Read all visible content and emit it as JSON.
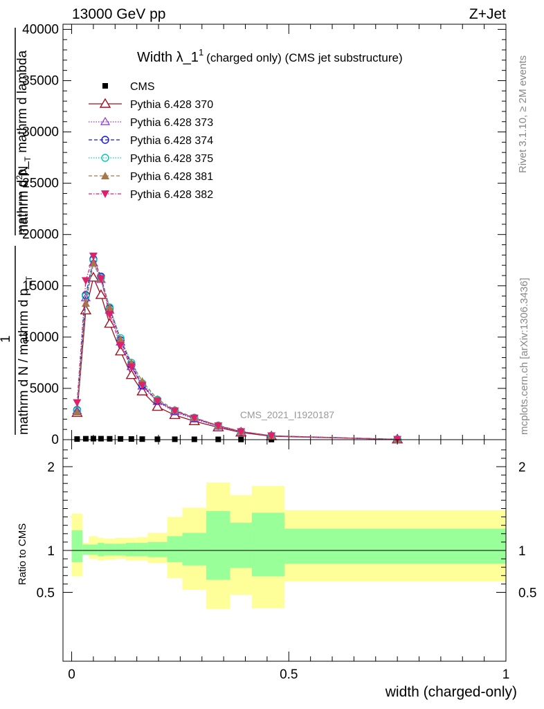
{
  "header": {
    "left": "13000 GeV pp",
    "right": "Z+Jet"
  },
  "side": {
    "rivet": "Rivet 3.1.10, ≥ 2M events",
    "mcplots": "mcplots.cern.ch [arXiv:1306.3436]"
  },
  "title": {
    "main": "Width λ_1",
    "sup": "1",
    "suffix": "(charged only) (CMS jet substructure)"
  },
  "watermark": "CMS_2021_I1920187",
  "ylabel_main": {
    "line1": "mathrm d",
    "line1_sup": "2",
    "line1_tail": "N",
    "line2": "mathrm d p_",
    "line2_sub": "T",
    "line2_tail": " mathrm d lambda",
    "frac1": "1",
    "frac2_part1": "mathrm d N / mathrm d p_",
    "frac2_sub": "T"
  },
  "ylabel_ratio": "Ratio to CMS",
  "xlabel": "width (charged-only)",
  "colors": {
    "cms": "#000000",
    "p370": "#a01020",
    "p373": "#8a2be2",
    "p374": "#1515e0",
    "p375": "#00c8b4",
    "p381": "#a5784a",
    "p382": "#e0206a",
    "band_inner": "#99ff99",
    "band_outer": "#ffff99"
  },
  "chart_data": [
    {
      "type": "line",
      "panel": "main",
      "ylim": [
        0,
        40500
      ],
      "xlim": [
        -0.02,
        1.0
      ],
      "yticks": [
        0,
        5000,
        10000,
        15000,
        20000,
        25000,
        30000,
        35000,
        40000
      ],
      "ytick_labels": [
        "0",
        "5000",
        "10000",
        "15000",
        "20000",
        "25000",
        "30000",
        "35000",
        "40000"
      ],
      "legend": {
        "placement": "top-left"
      },
      "x": [
        0.0125,
        0.0325,
        0.05,
        0.0675,
        0.0875,
        0.1125,
        0.1375,
        0.1625,
        0.1975,
        0.2375,
        0.2825,
        0.3375,
        0.39,
        0.46,
        0.75
      ],
      "series": [
        {
          "name": "CMS",
          "key": "cms",
          "marker": "square",
          "values": [
            60,
            90,
            100,
            95,
            85,
            75,
            65,
            55,
            45,
            40,
            35,
            30,
            20,
            15,
            5
          ]
        },
        {
          "name": "Pythia 6.428 370",
          "key": "p370",
          "marker": "triangle-open",
          "dash": "",
          "values": [
            2600,
            12600,
            15800,
            14100,
            11300,
            8600,
            6300,
            4700,
            3200,
            2400,
            1800,
            1200,
            700,
            330,
            25
          ]
        },
        {
          "name": "Pythia 6.428 373",
          "key": "p373",
          "marker": "triangle-open-small",
          "dash": "1.5,2",
          "values": [
            2800,
            13800,
            17200,
            15600,
            12600,
            9500,
            7100,
            5200,
            3700,
            2700,
            2000,
            1300,
            760,
            360,
            28
          ]
        },
        {
          "name": "Pythia 6.428 374",
          "key": "p374",
          "marker": "circle-open",
          "dash": "5,3",
          "values": [
            2900,
            14100,
            17600,
            15900,
            12800,
            9700,
            7300,
            5300,
            3800,
            2800,
            2100,
            1350,
            780,
            370,
            29
          ]
        },
        {
          "name": "Pythia 6.428 375",
          "key": "p375",
          "marker": "circle-open-cyan",
          "dash": "1.5,2",
          "values": [
            2850,
            14000,
            17500,
            15800,
            12900,
            9900,
            7500,
            5500,
            3900,
            2850,
            2150,
            1380,
            800,
            380,
            30
          ]
        },
        {
          "name": "Pythia 6.428 381",
          "key": "p381",
          "marker": "triangle-filled",
          "dash": "5,3",
          "values": [
            2700,
            13300,
            17200,
            15700,
            12900,
            9800,
            7500,
            5700,
            3950,
            2900,
            2150,
            1390,
            810,
            385,
            31
          ]
        },
        {
          "name": "Pythia 6.428 382",
          "key": "p382",
          "marker": "triangle-down-filled",
          "dash": "5,2,1.5,2",
          "values": [
            3600,
            15500,
            17900,
            15700,
            12200,
            9200,
            7100,
            5300,
            3750,
            2800,
            2100,
            1340,
            780,
            370,
            29
          ]
        }
      ]
    },
    {
      "type": "area",
      "panel": "ratio",
      "ylabel": "Ratio to CMS",
      "xlabel": "width (charged-only)",
      "ylim": [
        0.38,
        2.3
      ],
      "xlim": [
        -0.02,
        1.0
      ],
      "yticks": [
        0.5,
        1,
        2
      ],
      "ytick_labels": [
        "0.5",
        "1",
        "2"
      ],
      "xticks": [
        0,
        0.5,
        1
      ],
      "xtick_labels": [
        "0",
        "0.5",
        "1"
      ],
      "bin_edges": [
        0.0,
        0.025,
        0.04,
        0.06,
        0.075,
        0.1,
        0.125,
        0.15,
        0.175,
        0.22,
        0.255,
        0.31,
        0.365,
        0.415,
        0.49,
        1.0
      ],
      "inner_low": [
        0.86,
        0.95,
        0.95,
        0.93,
        0.94,
        0.94,
        0.93,
        0.93,
        0.92,
        0.86,
        0.82,
        0.65,
        0.79,
        0.69,
        0.84
      ],
      "inner_high": [
        1.24,
        1.07,
        1.07,
        1.09,
        1.08,
        1.08,
        1.09,
        1.09,
        1.1,
        1.17,
        1.21,
        1.47,
        1.33,
        1.45,
        1.26
      ],
      "outer_low": [
        0.69,
        0.95,
        0.9,
        0.88,
        0.89,
        0.9,
        0.88,
        0.88,
        0.85,
        0.67,
        0.53,
        0.3,
        0.47,
        0.31,
        0.63
      ],
      "outer_high": [
        1.44,
        1.09,
        1.17,
        1.15,
        1.14,
        1.15,
        1.15,
        1.16,
        1.21,
        1.4,
        1.51,
        1.81,
        1.66,
        1.77,
        1.48
      ]
    }
  ]
}
